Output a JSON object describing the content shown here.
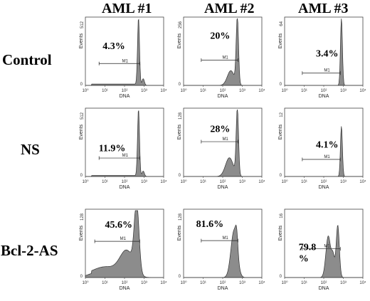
{
  "figure": {
    "columns": [
      "AML #1",
      "AML #2",
      "AML #3"
    ],
    "rows": [
      "Control",
      "NS",
      "Bcl-2-AS"
    ],
    "xlabel": "DNA",
    "ylabel": "Events",
    "gate_label": "M1",
    "x_ticks": [
      "10⁰",
      "10¹",
      "10²",
      "10³",
      "10⁴"
    ]
  },
  "chart_data": [
    {
      "type": "area",
      "row": "Control",
      "column": "AML #1",
      "xlabel": "DNA",
      "ylabel": "Events",
      "ymax": 512,
      "x_scale": "log",
      "xlim": [
        1,
        10000
      ],
      "gate": [
        5,
        600
      ],
      "annotation": "4.3%",
      "peaks": [
        {
          "x": 520,
          "h": 1.0,
          "w": 0.05
        },
        {
          "x": 900,
          "h": 0.1,
          "w": 0.06
        }
      ],
      "base": 0.02
    },
    {
      "type": "area",
      "row": "Control",
      "column": "AML #2",
      "xlabel": "DNA",
      "ylabel": "Events",
      "ymax": 256,
      "x_scale": "log",
      "xlim": [
        1,
        10000
      ],
      "gate": [
        8,
        600
      ],
      "annotation": "20%",
      "peaks": [
        {
          "x": 560,
          "h": 1.0,
          "w": 0.06
        },
        {
          "x": 260,
          "h": 0.22,
          "w": 0.18
        }
      ],
      "base": 0.0
    },
    {
      "type": "area",
      "row": "Control",
      "column": "AML #3",
      "xlabel": "DNA",
      "ylabel": "Events",
      "ymax": 64,
      "x_scale": "log",
      "xlim": [
        1,
        10000
      ],
      "gate": [
        8,
        700
      ],
      "annotation": "3.4%",
      "peaks": [
        {
          "x": 800,
          "h": 1.0,
          "w": 0.05
        }
      ],
      "base": 0.0
    },
    {
      "type": "area",
      "row": "NS",
      "column": "AML #1",
      "xlabel": "DNA",
      "ylabel": "Events",
      "ymax": 512,
      "x_scale": "log",
      "xlim": [
        1,
        10000
      ],
      "gate": [
        5,
        600
      ],
      "annotation": "11.9%",
      "peaks": [
        {
          "x": 520,
          "h": 1.0,
          "w": 0.05
        },
        {
          "x": 900,
          "h": 0.08,
          "w": 0.06
        }
      ],
      "base": 0.015
    },
    {
      "type": "area",
      "row": "NS",
      "column": "AML #2",
      "xlabel": "DNA",
      "ylabel": "Events",
      "ymax": 128,
      "x_scale": "log",
      "xlim": [
        1,
        10000
      ],
      "gate": [
        8,
        600
      ],
      "annotation": "28%",
      "peaks": [
        {
          "x": 560,
          "h": 1.0,
          "w": 0.06
        },
        {
          "x": 220,
          "h": 0.28,
          "w": 0.2
        }
      ],
      "base": 0.0
    },
    {
      "type": "area",
      "row": "NS",
      "column": "AML #3",
      "xlabel": "DNA",
      "ylabel": "Events",
      "ymax": 12,
      "x_scale": "log",
      "xlim": [
        1,
        10000
      ],
      "gate": [
        8,
        700
      ],
      "annotation": "4.1%",
      "peaks": [
        {
          "x": 800,
          "h": 0.75,
          "w": 0.05
        }
      ],
      "base": 0.0
    },
    {
      "type": "area",
      "row": "Bcl-2-AS",
      "column": "AML #1",
      "xlabel": "DNA",
      "ylabel": "Events",
      "ymax": 128,
      "x_scale": "log",
      "xlim": [
        1,
        10000
      ],
      "gate": [
        3,
        600
      ],
      "annotation": "45.6%",
      "peaks": [
        {
          "x": 420,
          "h": 1.0,
          "w": 0.12
        },
        {
          "x": 130,
          "h": 0.35,
          "w": 0.35
        },
        {
          "x": 10,
          "h": 0.12,
          "w": 0.6
        }
      ],
      "base": 0.04
    },
    {
      "type": "area",
      "row": "Bcl-2-AS",
      "column": "AML #2",
      "xlabel": "DNA",
      "ylabel": "Events",
      "ymax": 128,
      "x_scale": "log",
      "xlim": [
        1,
        10000
      ],
      "gate": [
        8,
        600
      ],
      "annotation": "81.6%",
      "peaks": [
        {
          "x": 380,
          "h": 0.7,
          "w": 0.16
        },
        {
          "x": 520,
          "h": 0.25,
          "w": 0.06
        }
      ],
      "base": 0.0
    },
    {
      "type": "area",
      "row": "Bcl-2-AS",
      "column": "AML #3",
      "xlabel": "DNA",
      "ylabel": "Events",
      "ymax": 16,
      "x_scale": "log",
      "xlim": [
        1,
        10000
      ],
      "gate": [
        8,
        700
      ],
      "annotation": "79.8 %",
      "peaks": [
        {
          "x": 170,
          "h": 0.62,
          "w": 0.12
        },
        {
          "x": 520,
          "h": 0.78,
          "w": 0.08
        },
        {
          "x": 300,
          "h": 0.3,
          "w": 0.08
        }
      ],
      "base": 0.0
    }
  ]
}
